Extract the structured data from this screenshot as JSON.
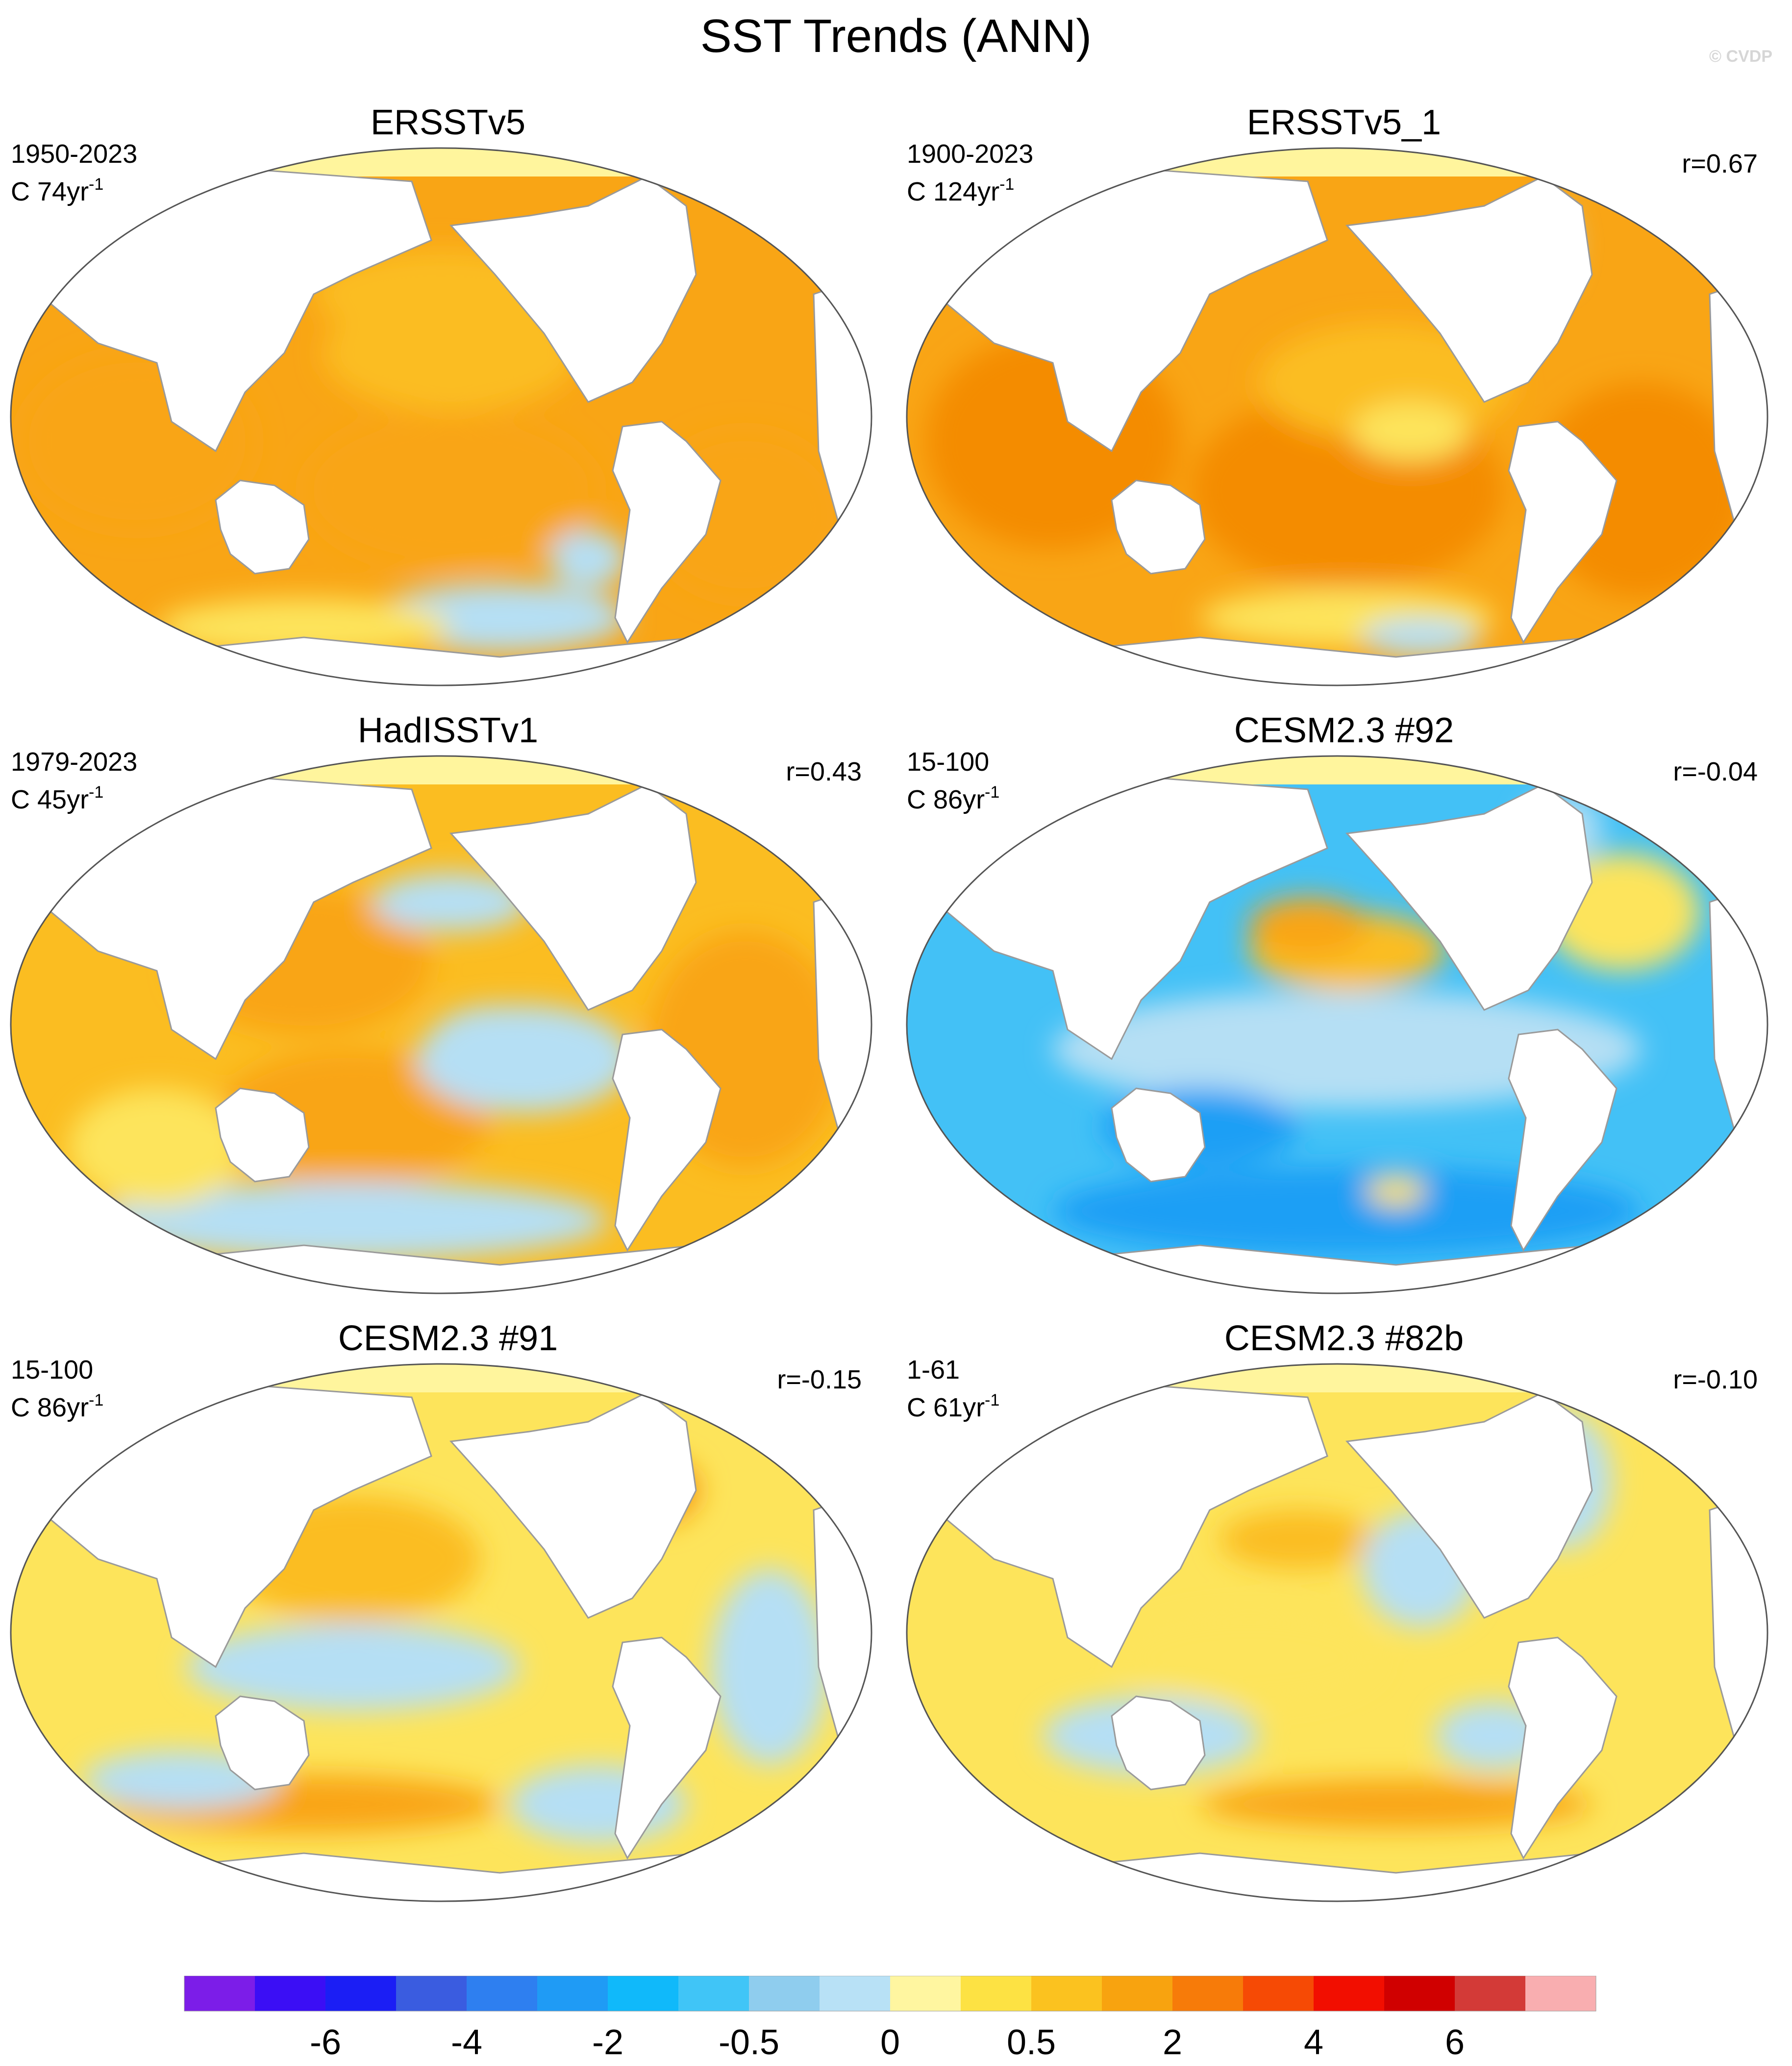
{
  "title": "SST Trends (ANN)",
  "credit": "© CVDP",
  "panels": [
    {
      "title": "ERSSTv5",
      "period": "1950-2023",
      "count": "C 74yr",
      "count_sup": "-1",
      "r": "",
      "field": {
        "base": "orange",
        "patches": [
          "light-orange",
          "light-blue",
          "yellow"
        ]
      }
    },
    {
      "title": "ERSSTv5_1",
      "period": "1900-2023",
      "count": "C 124yr",
      "count_sup": "-1",
      "r": "r=0.67",
      "field": {
        "base": "orange",
        "patches": [
          "dark-orange",
          "yellow",
          "light-blue"
        ]
      }
    },
    {
      "title": "HadISSTv1",
      "period": "1979-2023",
      "count": "C 45yr",
      "count_sup": "-1",
      "r": "r=0.43",
      "field": {
        "base": "light-orange",
        "patches": [
          "orange",
          "light-blue",
          "yellow"
        ]
      }
    },
    {
      "title": "CESM2.3 #92",
      "period": "15-100",
      "count": "C 86yr",
      "count_sup": "-1",
      "r": "r=-0.04",
      "field": {
        "base": "blue",
        "patches": [
          "light-blue",
          "orange",
          "yellow"
        ]
      }
    },
    {
      "title": "CESM2.3 #91",
      "period": "15-100",
      "count": "C 86yr",
      "count_sup": "-1",
      "r": "r=-0.15",
      "field": {
        "base": "yellow",
        "patches": [
          "light-blue",
          "orange",
          "red"
        ]
      }
    },
    {
      "title": "CESM2.3 #82b",
      "period": "1-61",
      "count": "C 61yr",
      "count_sup": "-1",
      "r": "r=-0.10",
      "field": {
        "base": "yellow",
        "patches": [
          "light-blue",
          "orange",
          "blue"
        ]
      }
    }
  ],
  "colors": {
    "dark-orange": "#f48c06",
    "orange": "#f9a515",
    "light-orange": "#fbbd21",
    "yellow": "#fde45b",
    "pale-yellow": "#fff59d",
    "light-blue": "#b5dff4",
    "blue": "#43c1f6",
    "mid-blue": "#1e9ff5",
    "red": "#e8451a",
    "land": "#ffffff",
    "coast": "#9a9a9a"
  },
  "chart_data": {
    "type": "heatmap",
    "colorbar": {
      "colors": [
        "#7c1de8",
        "#3b0ef5",
        "#1b1ef5",
        "#3a5ce0",
        "#2e7ff0",
        "#1f9bf5",
        "#10b9fa",
        "#40c5f7",
        "#8fcdee",
        "#b8e1f6",
        "#fff6a0",
        "#fde243",
        "#fbc21f",
        "#f8a30f",
        "#f77b09",
        "#f64a05",
        "#f20e00",
        "#d00000",
        "#d33a37",
        "#f9aeb0"
      ],
      "tick_labels": [
        "-6",
        "-4",
        "-2",
        "-0.5",
        "0",
        "0.5",
        "2",
        "4",
        "6"
      ]
    }
  }
}
